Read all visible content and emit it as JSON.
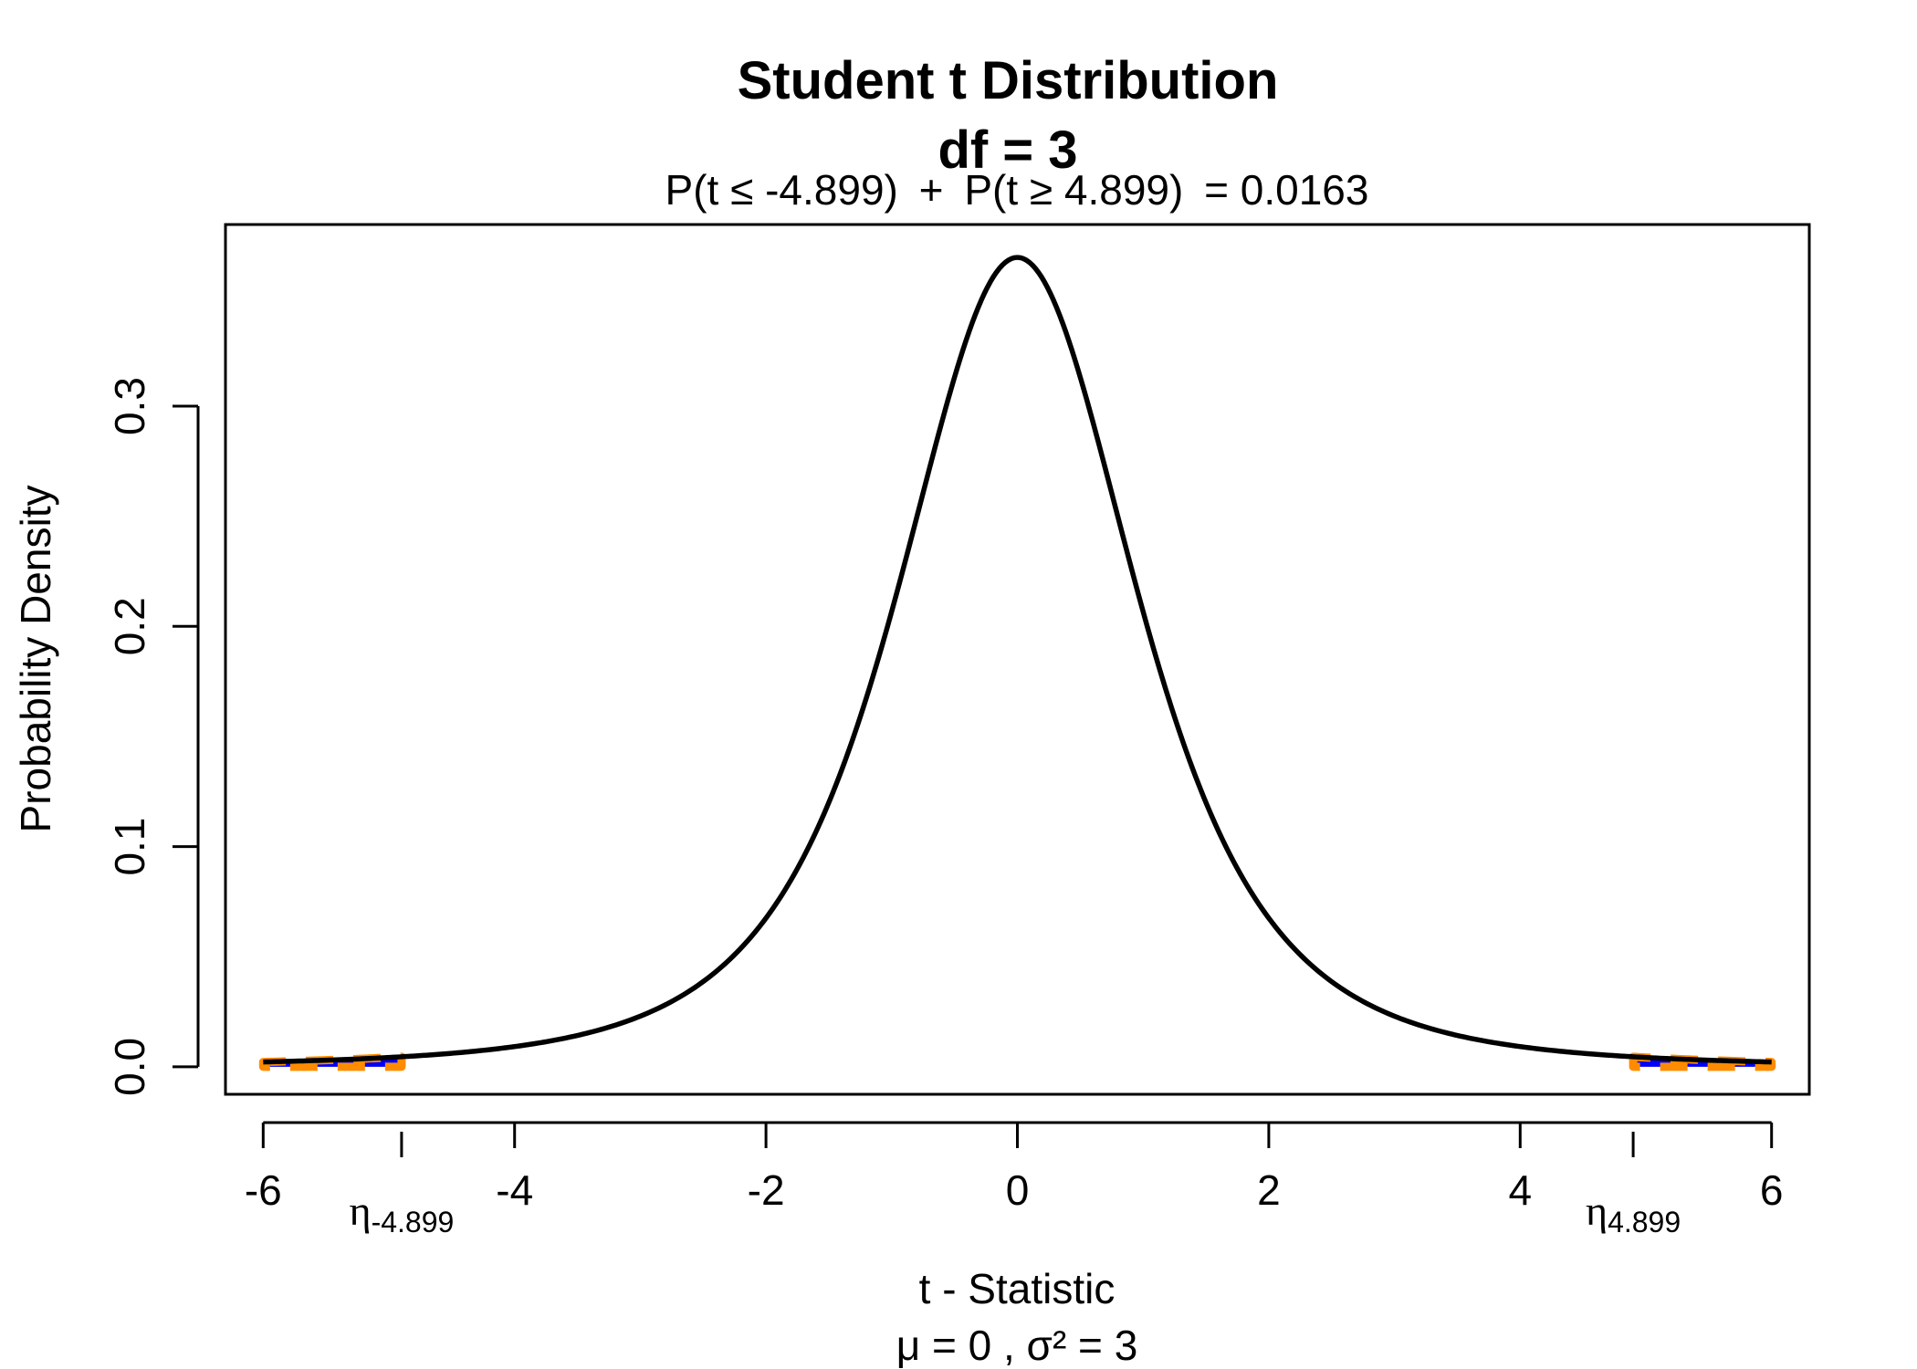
{
  "chart_data": {
    "type": "line",
    "title": "Student t Distribution",
    "title_line2": "df  =  3",
    "subtitle": {
      "left_prob": "P(t ≤ -4.899)",
      "plus": "+",
      "right_prob": "P(t ≥ 4.899)",
      "equals_value": "= 0.0163"
    },
    "xlabel": "t - Statistic",
    "xlabel_line2": "μ =  0 , σ² =  3",
    "ylabel": "Probability Density",
    "df": 3,
    "xlim": [
      -6.3,
      6.3
    ],
    "ylim": [
      -0.0125,
      0.3825
    ],
    "x_ticks": [
      -6,
      -4,
      -2,
      0,
      2,
      4,
      6
    ],
    "x_tick_labels": [
      "-6",
      "-4",
      "-2",
      "0",
      "2",
      "4",
      "6"
    ],
    "y_ticks": [
      0.0,
      0.1,
      0.2,
      0.3
    ],
    "y_tick_labels": [
      "0.0",
      "0.1",
      "0.2",
      "0.3"
    ],
    "grid": false,
    "critical_values": [
      {
        "x": -4.899,
        "symbol": "η",
        "subscript": "-4.899"
      },
      {
        "x": 4.899,
        "symbol": "η",
        "subscript": "4.899"
      }
    ],
    "shaded_tails": [
      [
        -6,
        -4.899
      ],
      [
        4.899,
        6
      ]
    ],
    "series": [
      {
        "x_range": [
          -6,
          6
        ],
        "color": "#000000"
      }
    ],
    "colors": {
      "curve": "#000000",
      "tail_fill": "#0000ff",
      "tail_outline": "#ff8c00"
    }
  }
}
